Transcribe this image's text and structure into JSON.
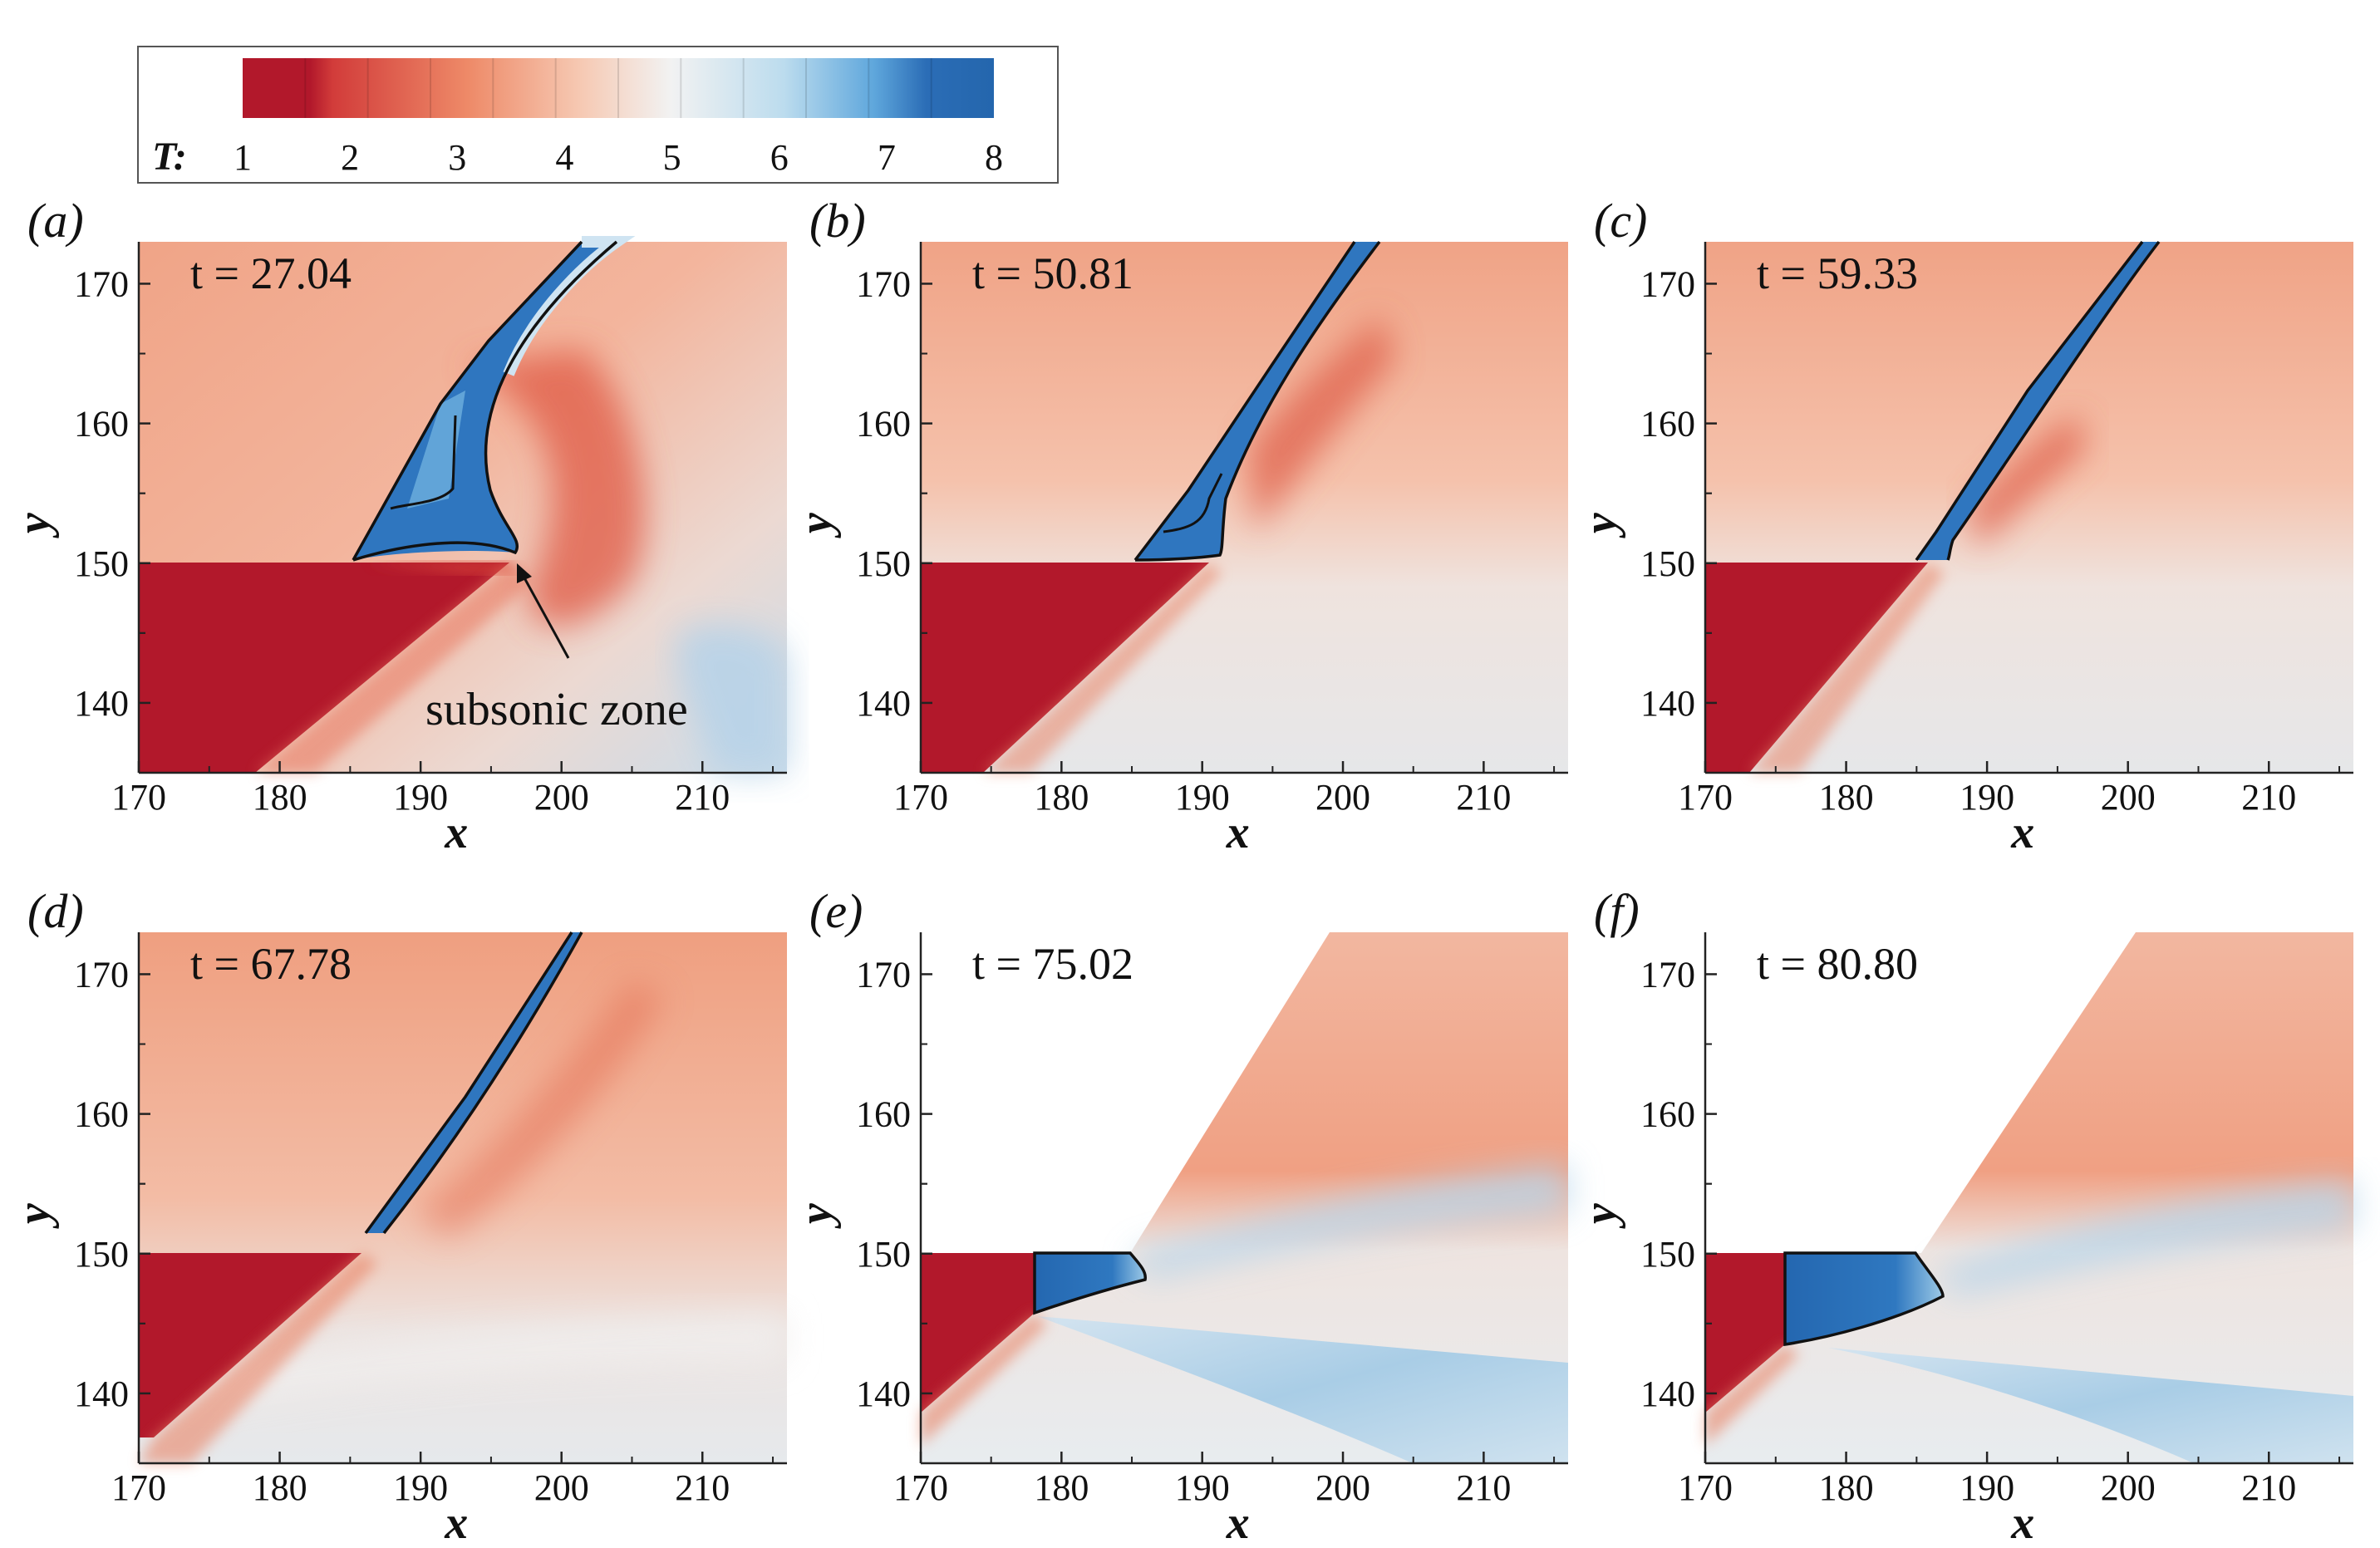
{
  "chart_data": {
    "type": "heatmap",
    "colorbar": {
      "label": "T:",
      "ticks": [
        1,
        2,
        3,
        4,
        5,
        6,
        7,
        8
      ],
      "range": [
        1,
        8
      ],
      "colors": [
        "#b2182b",
        "#d6604d",
        "#f4a582",
        "#f7f7f7",
        "#92c5de",
        "#4393c3",
        "#2166ac"
      ]
    },
    "panels": [
      {
        "label": "(a)",
        "title": "t = 27.04",
        "xlabel": "x",
        "ylabel": "y",
        "xlim": [
          170,
          216
        ],
        "ylim": [
          135,
          173
        ],
        "xticks": [
          "170",
          "180",
          "190",
          "200",
          "210"
        ],
        "yticks": [
          "140",
          "150",
          "160",
          "170"
        ],
        "annotation": "subsonic zone"
      },
      {
        "label": "(b)",
        "title": "t = 50.81",
        "xlabel": "x",
        "ylabel": "y",
        "xlim": [
          170,
          216
        ],
        "ylim": [
          135,
          173
        ],
        "xticks": [
          "170",
          "180",
          "190",
          "200",
          "210"
        ],
        "yticks": [
          "140",
          "150",
          "160",
          "170"
        ]
      },
      {
        "label": "(c)",
        "title": "t = 59.33",
        "xlabel": "x",
        "ylabel": "y",
        "xlim": [
          170,
          216
        ],
        "ylim": [
          135,
          173
        ],
        "xticks": [
          "170",
          "180",
          "190",
          "200",
          "210"
        ],
        "yticks": [
          "140",
          "150",
          "160",
          "170"
        ]
      },
      {
        "label": "(d)",
        "title": "t = 67.78",
        "xlabel": "x",
        "ylabel": "y",
        "xlim": [
          170,
          216
        ],
        "ylim": [
          135,
          173
        ],
        "xticks": [
          "170",
          "180",
          "190",
          "200",
          "210"
        ],
        "yticks": [
          "140",
          "150",
          "160",
          "170"
        ]
      },
      {
        "label": "(e)",
        "title": "t = 75.02",
        "xlabel": "x",
        "ylabel": "y",
        "xlim": [
          170,
          216
        ],
        "ylim": [
          135,
          173
        ],
        "xticks": [
          "170",
          "180",
          "190",
          "200",
          "210"
        ],
        "yticks": [
          "140",
          "150",
          "160",
          "170"
        ]
      },
      {
        "label": "(f)",
        "title": "t = 80.80",
        "xlabel": "x",
        "ylabel": "y",
        "xlim": [
          170,
          216
        ],
        "ylim": [
          135,
          173
        ],
        "xticks": [
          "170",
          "180",
          "190",
          "200",
          "210"
        ],
        "yticks": [
          "140",
          "150",
          "160",
          "170"
        ]
      }
    ]
  }
}
